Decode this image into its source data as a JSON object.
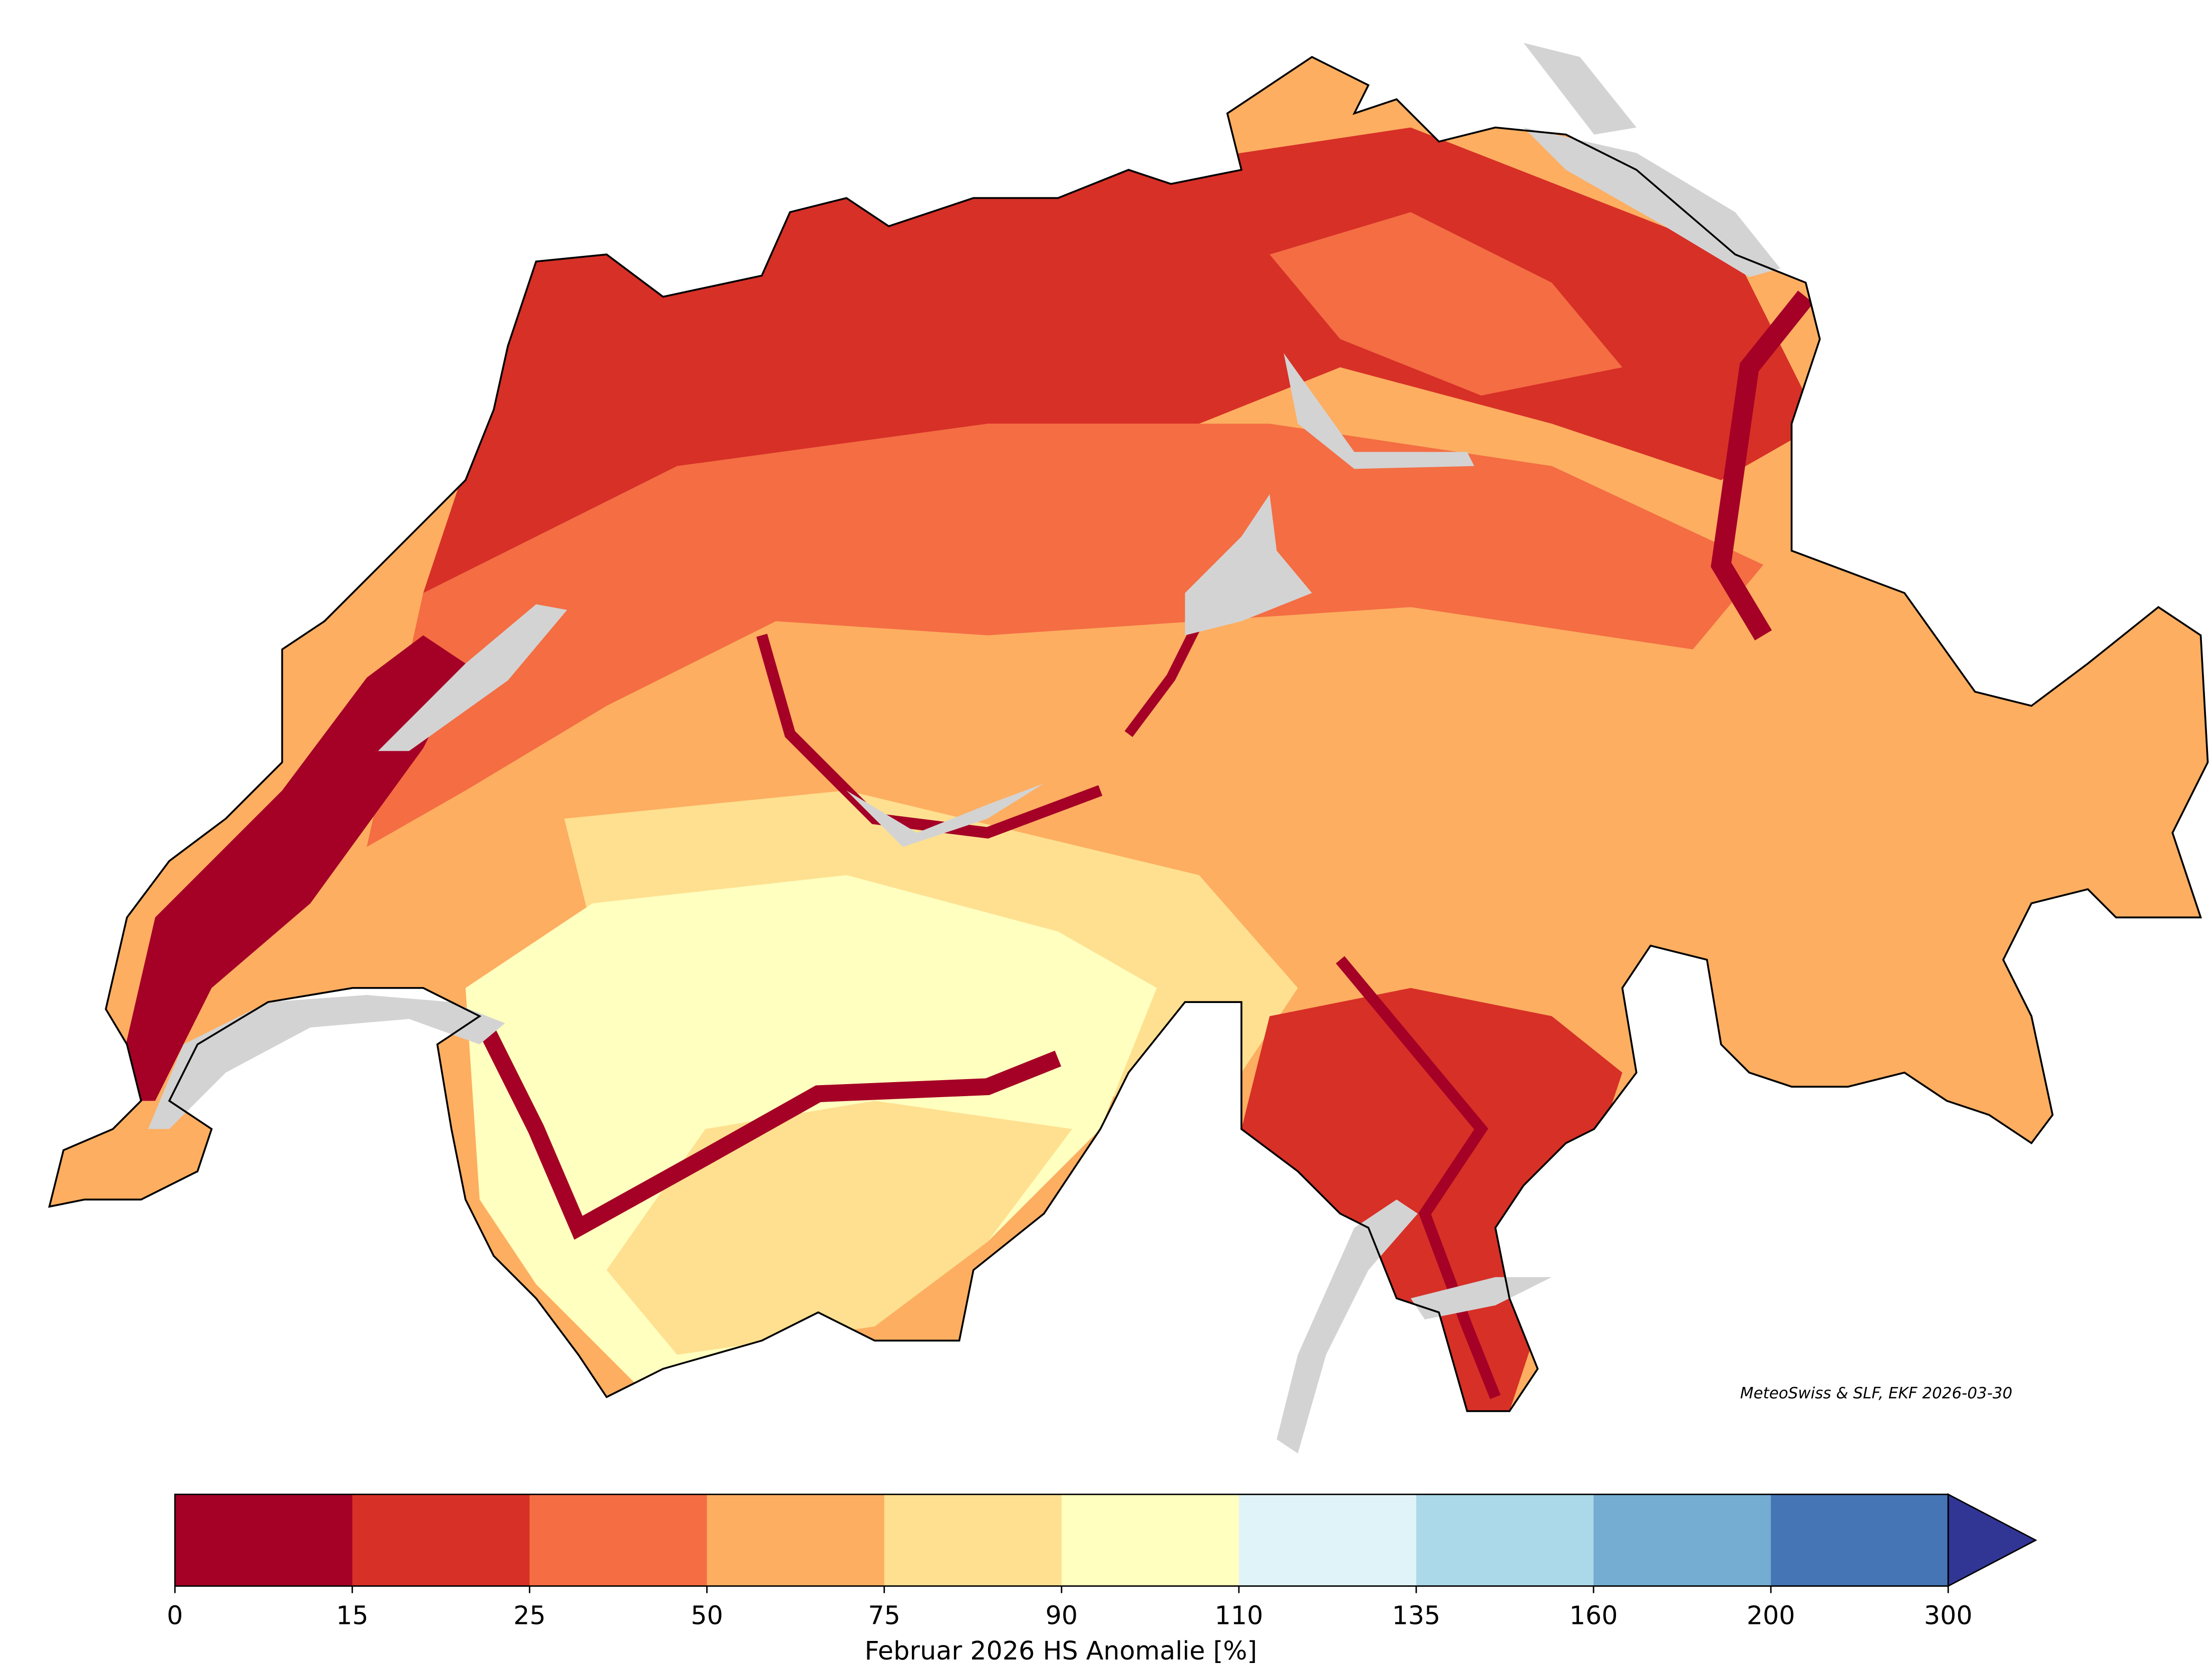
{
  "map": {
    "credit": "MeteoSwiss & SLF, EKF 2026-03-30",
    "colorbar": {
      "label": "Februar 2026 HS Anomalie [%]",
      "ticks": [
        0,
        15,
        25,
        50,
        75,
        90,
        110,
        135,
        160,
        200,
        300
      ],
      "colors": [
        "#a50026",
        "#d73027",
        "#f46d43",
        "#fdae61",
        "#fee090",
        "#ffffbf",
        "#e0f3f8",
        "#abd9e9",
        "#74add1",
        "#4575b4"
      ],
      "extend_color": "#313695"
    }
  }
}
